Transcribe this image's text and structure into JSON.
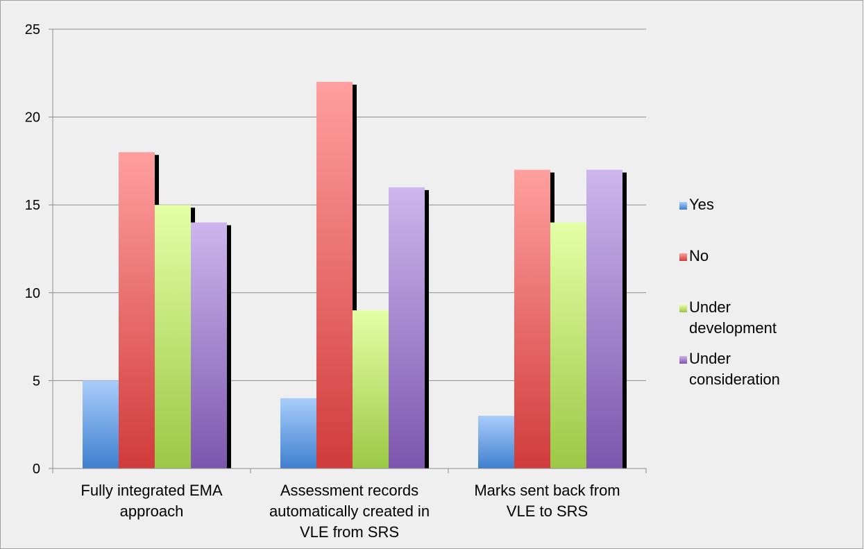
{
  "chart_data": {
    "type": "bar",
    "title": "",
    "xlabel": "",
    "ylabel": "",
    "ylim": [
      0,
      25
    ],
    "yticks": [
      0,
      5,
      10,
      15,
      20,
      25
    ],
    "grid": true,
    "legend_position": "right",
    "categories": [
      [
        "Fully integrated EMA",
        "approach"
      ],
      [
        "Assessment records",
        "automatically created in",
        "VLE from SRS"
      ],
      [
        "Marks sent back from",
        "VLE to SRS"
      ]
    ],
    "series": [
      {
        "name": "Yes",
        "legend_lines": [
          "Yes"
        ],
        "values": [
          5,
          4,
          3
        ],
        "color_top": "#a9cdfb",
        "color_bottom": "#3f7fcf"
      },
      {
        "name": "No",
        "legend_lines": [
          "No"
        ],
        "values": [
          18,
          22,
          17
        ],
        "color_top": "#ff9f9f",
        "color_bottom": "#d13b3b"
      },
      {
        "name": "Under development",
        "legend_lines": [
          "Under",
          "development"
        ],
        "values": [
          15,
          9,
          14
        ],
        "color_top": "#e4ffa6",
        "color_bottom": "#9bc845"
      },
      {
        "name": "Under consideration",
        "legend_lines": [
          "Under",
          "consideration"
        ],
        "values": [
          14,
          16,
          17
        ],
        "color_top": "#cdb6ee",
        "color_bottom": "#7c56ad"
      }
    ],
    "colors": {
      "background": "#efefef",
      "border": "#a0a0a0",
      "grid": "#8c8c8c",
      "axis": "#8c8c8c",
      "shadow": "#000000"
    }
  }
}
